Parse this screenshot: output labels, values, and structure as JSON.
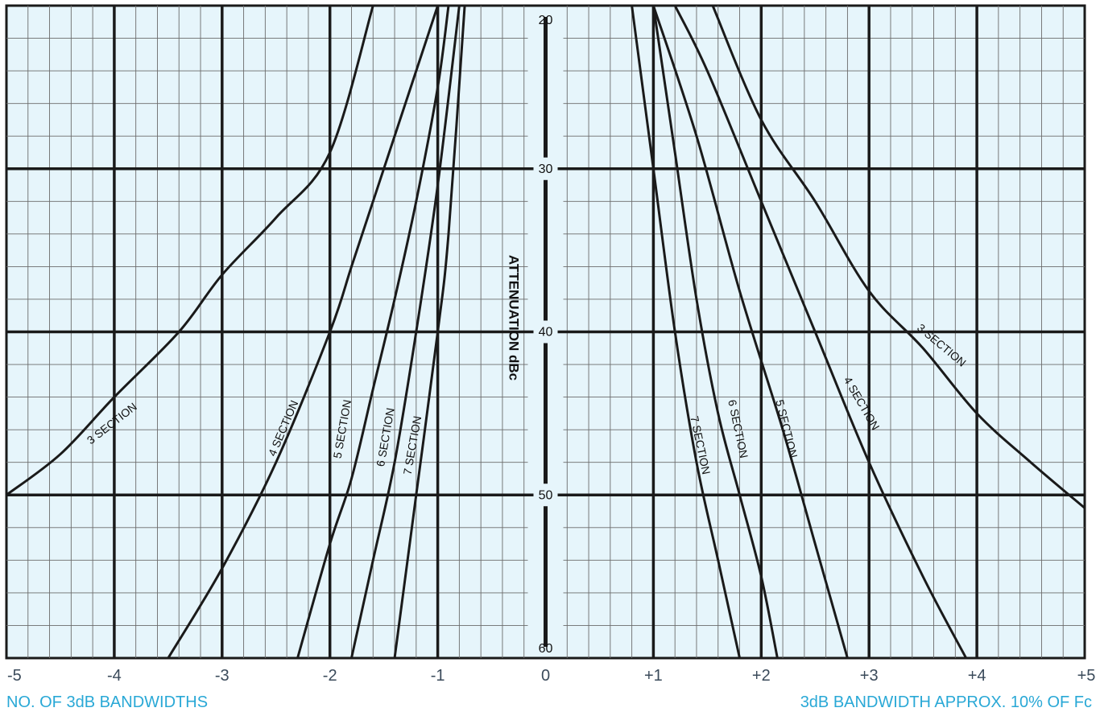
{
  "chart_data": {
    "type": "line",
    "ylabel": "ATTENUATION dBc",
    "xlim": [
      -5,
      5
    ],
    "ylim": [
      60,
      20
    ],
    "y_axis_reversed": true,
    "x_ticks": [
      "-5",
      "-4",
      "-3",
      "-2",
      "-1",
      "0",
      "+1",
      "+2",
      "+3",
      "+4",
      "+5"
    ],
    "y_ticks": [
      "20",
      "30",
      "40",
      "50",
      "60"
    ],
    "grid": true,
    "series": [
      {
        "name": "3 SECTION",
        "x": [
          -5.0,
          -4.5,
          -4.0,
          -3.4,
          -3.0,
          -2.5,
          -2.0,
          -1.6
        ],
        "y": [
          50.0,
          47.5,
          44.0,
          40.0,
          36.5,
          33.0,
          29.0,
          20.0
        ]
      },
      {
        "name": "4 SECTION",
        "x": [
          -3.5,
          -3.0,
          -2.5,
          -2.0,
          -1.8,
          -1.6,
          -1.0
        ],
        "y": [
          60.0,
          54.5,
          48.0,
          40.0,
          36.0,
          32.0,
          20.0
        ]
      },
      {
        "name": "5 SECTION",
        "x": [
          -2.3,
          -2.0,
          -1.8,
          -1.6,
          -1.4,
          -1.2,
          -1.0,
          -0.9
        ],
        "y": [
          60.0,
          53.0,
          49.0,
          43.5,
          38.0,
          32.0,
          25.0,
          20.0
        ]
      },
      {
        "name": "6 SECTION",
        "x": [
          -1.8,
          -1.6,
          -1.4,
          -1.2,
          -1.0,
          -0.8
        ],
        "y": [
          60.0,
          54.0,
          48.0,
          40.0,
          31.0,
          20.0
        ]
      },
      {
        "name": "7 SECTION",
        "x": [
          -1.4,
          -1.2,
          -1.0,
          -0.9,
          -0.75
        ],
        "y": [
          60.0,
          50.0,
          40.0,
          34.0,
          20.0
        ]
      },
      {
        "name": "7 SECTION",
        "x": [
          0.8,
          1.0,
          1.2,
          1.4,
          1.6,
          1.8
        ],
        "y": [
          20.0,
          30.0,
          40.0,
          48.0,
          54.0,
          60.0
        ]
      },
      {
        "name": "6 SECTION",
        "x": [
          1.0,
          1.2,
          1.4,
          1.6,
          1.8,
          2.0,
          2.15
        ],
        "y": [
          20.0,
          29.0,
          38.0,
          45.0,
          50.0,
          55.0,
          60.0
        ]
      },
      {
        "name": "5 SECTION",
        "x": [
          1.0,
          1.4,
          1.8,
          2.2,
          2.5,
          2.8
        ],
        "y": [
          20.0,
          28.0,
          37.5,
          46.0,
          53.0,
          60.0
        ]
      },
      {
        "name": "4 SECTION",
        "x": [
          1.2,
          1.5,
          2.0,
          2.5,
          3.0,
          3.5,
          3.9
        ],
        "y": [
          20.0,
          24.0,
          32.0,
          40.0,
          48.0,
          55.0,
          60.0
        ]
      },
      {
        "name": "3 SECTION",
        "x": [
          1.55,
          2.0,
          2.5,
          3.0,
          3.5,
          4.0,
          4.5,
          5.0
        ],
        "y": [
          20.0,
          27.0,
          32.0,
          37.5,
          41.0,
          45.0,
          48.0,
          50.8
        ]
      }
    ],
    "curve_labels": [
      {
        "text": "3 SECTION",
        "x": -4.0,
        "y": 45.8,
        "rotate": -38
      },
      {
        "text": "4 SECTION",
        "x": -2.4,
        "y": 46.0,
        "rotate": -67
      },
      {
        "text": "5 SECTION",
        "x": -1.85,
        "y": 46.0,
        "rotate": -80
      },
      {
        "text": "6 SECTION",
        "x": -1.45,
        "y": 46.5,
        "rotate": -80
      },
      {
        "text": "7 SECTION",
        "x": -1.2,
        "y": 47.0,
        "rotate": -80
      },
      {
        "text": "7 SECTION",
        "x": 1.4,
        "y": 47.0,
        "rotate": 78
      },
      {
        "text": "6 SECTION",
        "x": 1.75,
        "y": 46.0,
        "rotate": 78
      },
      {
        "text": "5 SECTION",
        "x": 2.2,
        "y": 46.0,
        "rotate": 76
      },
      {
        "text": "4 SECTION",
        "x": 2.9,
        "y": 44.5,
        "rotate": 60
      },
      {
        "text": "3 SECTION",
        "x": 3.65,
        "y": 41.0,
        "rotate": 40
      }
    ]
  },
  "footer": {
    "left_text": "NO. OF 3dB BANDWIDTHS",
    "right_text": "3dB BANDWIDTH APPROX. 10% OF Fc"
  },
  "colors": {
    "plot_background": "#e6f5fb",
    "minor_grid": "#6b6b6b",
    "major_grid": "#1a1a1a",
    "curve": "#1a1a1a",
    "footer_text": "#29a8d6"
  }
}
